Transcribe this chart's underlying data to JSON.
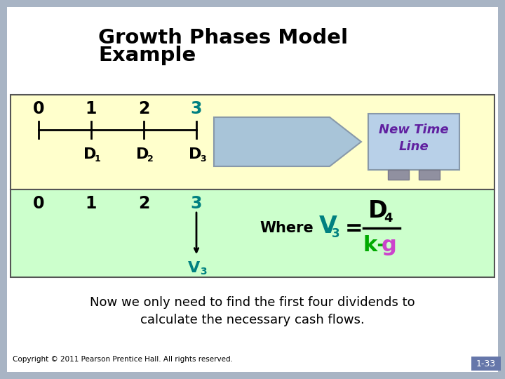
{
  "title_line1": "Growth Phases Model",
  "title_line2": "Example",
  "title_fontsize": 21,
  "title_fontweight": "bold",
  "bg_color": "#a8b4c4",
  "white_bg": "#ffffff",
  "yellow_bg": "#ffffcc",
  "green_bg": "#ccffcc",
  "teal_color": "#008080",
  "purple_color": "#7030a0",
  "green_color": "#00aa00",
  "magenta_color": "#cc44cc",
  "black_color": "#000000",
  "arrow_fill": "#a8c4d8",
  "arrow_edge": "#8899aa",
  "banner_fill": "#b8d0e8",
  "banner_edge": "#8899aa",
  "tab_fill": "#9090a0",
  "new_time_line_text": "New Time\nLine",
  "new_time_line_color": "#6020a0",
  "top_numbers": [
    "0",
    "1",
    "2",
    "3"
  ],
  "bottom_numbers": [
    "0",
    "1",
    "2",
    "3"
  ],
  "footer_text": "Now we only need to find the first four dividends to\ncalculate the necessary cash flows.",
  "copyright_text": "Copyright © 2011 Pearson Prentice Hall. All rights reserved.",
  "page_label": "1-33",
  "page_box_color": "#6677aa"
}
